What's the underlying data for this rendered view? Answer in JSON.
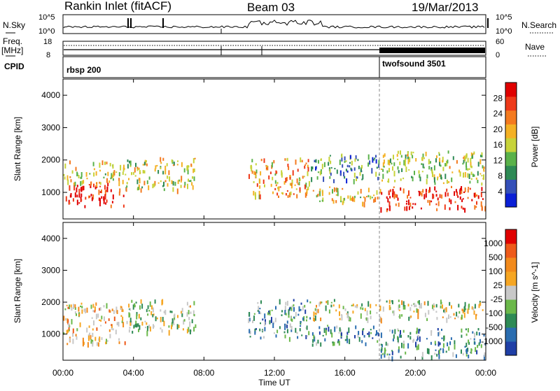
{
  "header": {
    "title": "Rankin Inlet (fitACF)",
    "beam": "Beam 03",
    "date": "19/Mar/2013"
  },
  "top_panel": {
    "nsky_label": "N.Sky",
    "nsearch_label": "N.Search",
    "left_tick_top": "10^5",
    "left_tick_bottom": "10^0",
    "right_tick_top": "10^5",
    "right_tick_bottom": "10^0"
  },
  "freq_panel": {
    "freq_label": "Freq.",
    "freq_unit": "[MHz]",
    "freq_ticks": [
      "18",
      "8"
    ],
    "nave_label": "Nave",
    "nave_ticks": [
      "60",
      "0"
    ]
  },
  "cpid_panel": {
    "label": "CPID",
    "programs": [
      {
        "name": "rbsp 200",
        "start_hour": 0
      },
      {
        "name": "twofsound 3501",
        "start_hour": 18
      }
    ]
  },
  "colors": {
    "power_scale": [
      "#0a1fd6",
      "#3550b8",
      "#2e8a55",
      "#5ab24a",
      "#c7d33a",
      "#f4b125",
      "#f47a1f",
      "#ee3a1a",
      "#e00000"
    ],
    "velocity_scale": [
      "#1f3fa6",
      "#2a6db0",
      "#2e8a55",
      "#6bb84a",
      "#c8c8c8",
      "#f6a623",
      "#f28a1c",
      "#ee5a1a",
      "#e00000"
    ]
  },
  "chart_data": [
    {
      "type": "heatmap",
      "title": "Power",
      "xlabel": "Time UT",
      "ylabel": "Slant Range [km]",
      "x_ticks": [
        "00:00",
        "04:00",
        "08:00",
        "12:00",
        "16:00",
        "20:00",
        "00:00"
      ],
      "xlim_hours": [
        0,
        24
      ],
      "y_ticks": [
        "1000",
        "2000",
        "3000",
        "4000"
      ],
      "ylim": [
        180,
        4500
      ],
      "colorbar": {
        "label": "Power [dB]",
        "ticks": [
          "28",
          "24",
          "20",
          "16",
          "12",
          "8",
          "4"
        ],
        "range": [
          0,
          32
        ]
      },
      "regions": [
        {
          "t0": 0.0,
          "t1": 3.5,
          "r0": 600,
          "r1": 1300,
          "level": 0.92
        },
        {
          "t0": 0.0,
          "t1": 3.5,
          "r0": 1300,
          "r1": 2000,
          "level": 0.55
        },
        {
          "t0": 3.5,
          "t1": 7.5,
          "r0": 1100,
          "r1": 2100,
          "level": 0.5
        },
        {
          "t0": 10.5,
          "t1": 14.0,
          "r0": 900,
          "r1": 2100,
          "level": 0.65
        },
        {
          "t0": 14.0,
          "t1": 18.0,
          "r0": 700,
          "r1": 1200,
          "level": 0.55
        },
        {
          "t0": 14.0,
          "t1": 18.0,
          "r0": 1400,
          "r1": 2200,
          "level": 0.3
        },
        {
          "t0": 18.0,
          "t1": 24.0,
          "r0": 500,
          "r1": 1200,
          "level": 0.9
        },
        {
          "t0": 18.0,
          "t1": 24.0,
          "r0": 1300,
          "r1": 2300,
          "level": 0.45
        }
      ]
    },
    {
      "type": "heatmap",
      "title": "Velocity",
      "xlabel": "Time UT",
      "ylabel": "Slant Range [km]",
      "x_ticks": [
        "00:00",
        "04:00",
        "08:00",
        "12:00",
        "16:00",
        "20:00",
        "00:00"
      ],
      "xlim_hours": [
        0,
        24
      ],
      "y_ticks": [
        "1000",
        "2000",
        "3000",
        "4000"
      ],
      "ylim": [
        180,
        4500
      ],
      "colorbar": {
        "label": "Velocity [m s^-1]",
        "ticks": [
          "1000",
          "500",
          "100",
          "25",
          "-25",
          "-100",
          "-500",
          "-1000"
        ],
        "range": [
          -1250,
          1250
        ]
      },
      "regions": [
        {
          "t0": 0.0,
          "t1": 3.5,
          "r0": 700,
          "r1": 2000,
          "level": 0.6
        },
        {
          "t0": 3.5,
          "t1": 7.5,
          "r0": 1100,
          "r1": 2100,
          "level": 0.45
        },
        {
          "t0": 10.5,
          "t1": 14.0,
          "r0": 900,
          "r1": 2100,
          "level": 0.3
        },
        {
          "t0": 14.0,
          "t1": 18.0,
          "r0": 700,
          "r1": 1300,
          "level": 0.25
        },
        {
          "t0": 14.0,
          "t1": 24.0,
          "r0": 1500,
          "r1": 2100,
          "level": 0.5
        },
        {
          "t0": 18.0,
          "t1": 24.0,
          "r0": 300,
          "r1": 1200,
          "level": 0.3
        }
      ]
    }
  ]
}
